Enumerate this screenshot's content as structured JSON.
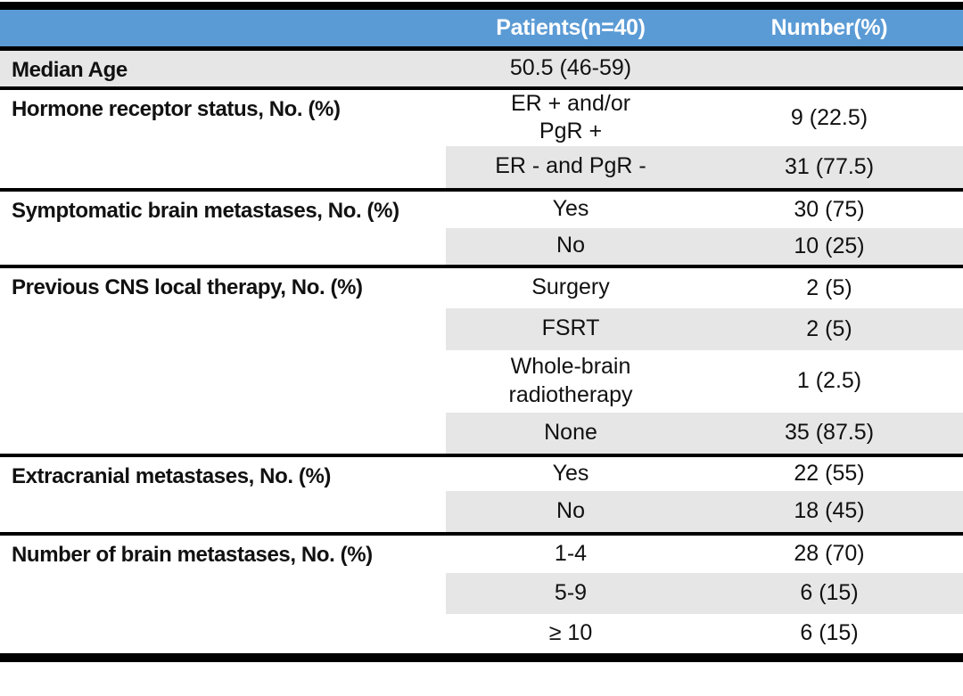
{
  "table": {
    "header": {
      "patients_col": "Patients(n=40)",
      "number_col": "Number(%)"
    },
    "sections": [
      {
        "label": "Median Age",
        "rows": [
          {
            "value": "50.5 (46-59)",
            "number": ""
          }
        ]
      },
      {
        "label": "Hormone receptor status, No. (%)",
        "rows": [
          {
            "value": "ER + and/or\nPgR +",
            "number": "9 (22.5)"
          },
          {
            "value": "ER - and PgR -",
            "number": "31 (77.5)"
          }
        ]
      },
      {
        "label": "Symptomatic brain metastases, No. (%)",
        "rows": [
          {
            "value": "Yes",
            "number": "30 (75)"
          },
          {
            "value": "No",
            "number": "10 (25)"
          }
        ]
      },
      {
        "label": "Previous CNS local therapy, No. (%)",
        "rows": [
          {
            "value": "Surgery",
            "number": "2 (5)"
          },
          {
            "value": "FSRT",
            "number": "2 (5)"
          },
          {
            "value": "Whole-brain\nradiotherapy",
            "number": "1 (2.5)"
          },
          {
            "value": "None",
            "number": "35 (87.5)"
          }
        ]
      },
      {
        "label": "Extracranial metastases, No. (%)",
        "rows": [
          {
            "value": "Yes",
            "number": "22 (55)"
          },
          {
            "value": "No",
            "number": "18 (45)"
          }
        ]
      },
      {
        "label": "Number of brain metastases, No. (%)",
        "rows": [
          {
            "value": "1-4",
            "number": "28 (70)"
          },
          {
            "value": "5-9",
            "number": "6 (15)"
          },
          {
            "value": "≥ 10",
            "number": "6 (15)"
          }
        ]
      }
    ],
    "colors": {
      "header_bg": "#5B9BD5",
      "header_text": "#FFFFFF",
      "row_shade": "#E7E6E6",
      "rule": "#000000"
    }
  }
}
